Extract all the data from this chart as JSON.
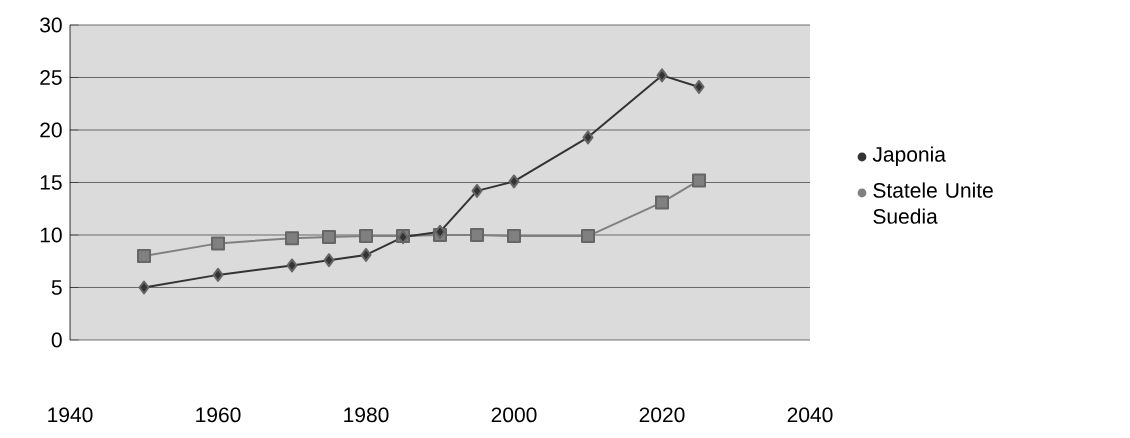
{
  "chart_data": {
    "type": "line",
    "x": [
      1950,
      1960,
      1970,
      1975,
      1980,
      1985,
      1990,
      1995,
      2000,
      2010,
      2020,
      2025
    ],
    "series": [
      {
        "name": "Japonia",
        "color": "#333333",
        "marker": "diamond",
        "values": [
          5,
          6.2,
          7.1,
          7.6,
          8.1,
          9.8,
          10.3,
          14.2,
          15.1,
          19.3,
          25.2,
          24.1
        ]
      },
      {
        "name": "Statele Unite Suedia",
        "color": "#808080",
        "marker": "square",
        "values": [
          8,
          9.2,
          9.7,
          9.8,
          9.9,
          9.9,
          10,
          10,
          9.9,
          9.9,
          13.1,
          15.2
        ]
      }
    ],
    "xlim": [
      1940,
      2040
    ],
    "xticks": [
      1940,
      1960,
      1980,
      2000,
      2020,
      2040
    ],
    "ylim": [
      0,
      30
    ],
    "yticks": [
      0,
      5,
      10,
      15,
      20,
      25,
      30
    ],
    "grid": "y",
    "legend": "right",
    "line_style": "solid"
  }
}
